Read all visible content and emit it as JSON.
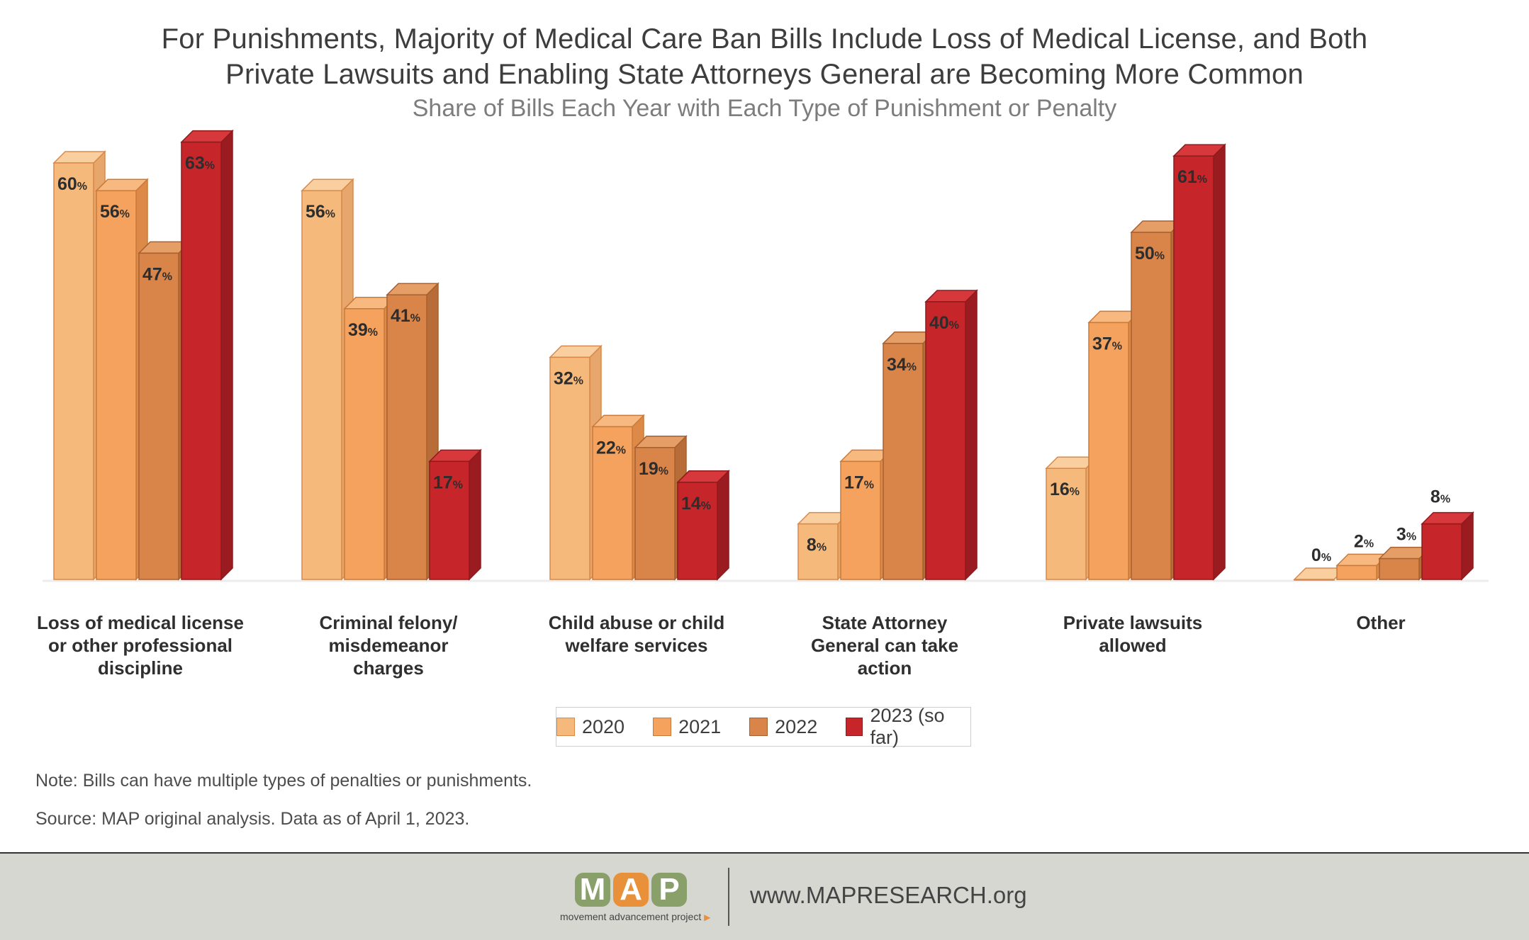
{
  "header": {
    "title_line1": "For Punishments, Majority of Medical Care Ban Bills Include Loss of Medical License, and Both",
    "title_line2": "Private Lawsuits and Enabling State Attorneys General are Becoming More Common",
    "subtitle": "Share of Bills Each Year with Each Type of Punishment or Penalty"
  },
  "chart_data": {
    "type": "bar",
    "style": "3d-clustered-column",
    "title": "For Punishments, Majority of Medical Care Ban Bills Include Loss of Medical License, and Both Private Lawsuits and Enabling State Attorneys General are Becoming More Common",
    "subtitle": "Share of Bills Each Year with Each Type of Punishment or Penalty",
    "value_suffix": "%",
    "ylim": [
      0,
      100
    ],
    "grid": false,
    "legend_position": "bottom-center",
    "categories": [
      [
        "Loss of medical license",
        "or other professional",
        "discipline"
      ],
      [
        "Criminal felony/",
        "misdemeanor",
        "charges"
      ],
      [
        "Child abuse or child",
        "welfare services"
      ],
      [
        "State Attorney",
        "General can take",
        "action"
      ],
      [
        "Private lawsuits",
        "allowed"
      ],
      [
        "Other"
      ]
    ],
    "series": [
      {
        "name": "2020",
        "color": "#f6b97c",
        "values": [
          60,
          56,
          32,
          8,
          16,
          0
        ]
      },
      {
        "name": "2021",
        "color": "#f4a25e",
        "values": [
          56,
          39,
          22,
          17,
          37,
          2
        ]
      },
      {
        "name": "2022",
        "color": "#d9854a",
        "values": [
          47,
          41,
          19,
          34,
          50,
          3
        ]
      },
      {
        "name": "2023 (so far)",
        "color": "#c6262a",
        "values": [
          63,
          17,
          14,
          40,
          61,
          8
        ]
      }
    ]
  },
  "notes": {
    "note": "Note: Bills can have multiple types of penalties or punishments.",
    "source": "Source: MAP original analysis. Data as of April 1, 2023."
  },
  "footer": {
    "logo_letters": [
      "M",
      "A",
      "P"
    ],
    "logo_colors": [
      "#8aa06a",
      "#e8913a",
      "#8aa06a"
    ],
    "logo_tagline": "movement advancement project",
    "url": "www.MAPRESEARCH.org",
    "background_color": "#d7d7d2"
  }
}
